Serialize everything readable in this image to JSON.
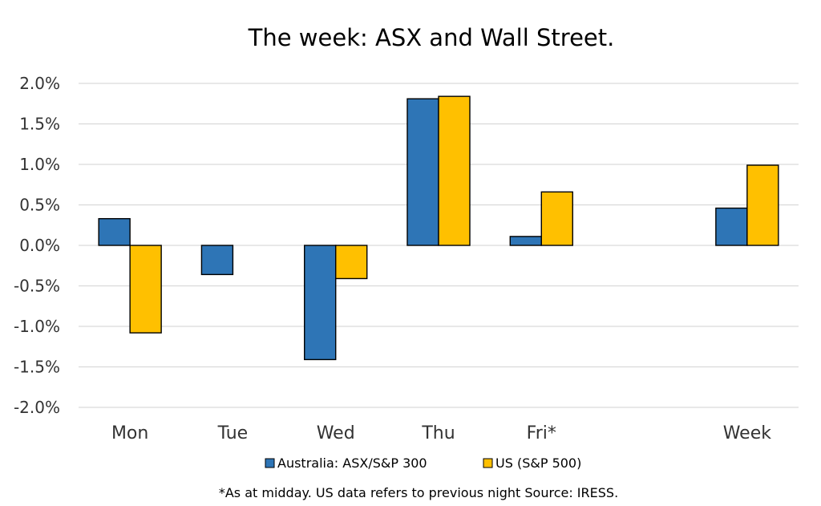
{
  "chart_data": {
    "type": "bar",
    "title": "The week:  ASX and Wall Street.",
    "categories": [
      "Mon",
      "Tue",
      "Wed",
      "Thu",
      "Fri*",
      "",
      "Week"
    ],
    "series": [
      {
        "name": "Australia: ASX/S&P 300",
        "color": "#2E75B6",
        "values": [
          0.33,
          -0.36,
          -1.41,
          1.81,
          0.11,
          null,
          0.46
        ]
      },
      {
        "name": "US (S&P 500)",
        "color": "#FFC000",
        "values": [
          -1.08,
          null,
          -0.41,
          1.84,
          0.66,
          null,
          0.99
        ]
      }
    ],
    "yticks": [
      {
        "value": 2.0,
        "label": "2.0%"
      },
      {
        "value": 1.5,
        "label": "1.5%"
      },
      {
        "value": 1.0,
        "label": "1.0%"
      },
      {
        "value": 0.5,
        "label": "0.5%"
      },
      {
        "value": 0.0,
        "label": "0.0%"
      },
      {
        "value": -0.5,
        "label": "-0.5%"
      },
      {
        "value": -1.0,
        "label": "-1.0%"
      },
      {
        "value": -1.5,
        "label": "-1.5%"
      },
      {
        "value": -2.0,
        "label": "-2.0%"
      }
    ],
    "ylim": [
      -2.0,
      2.0
    ],
    "grid": true,
    "legend_position": "bottom",
    "footnote": "*As at midday. US data refers to previous night  Source:  IRESS."
  }
}
